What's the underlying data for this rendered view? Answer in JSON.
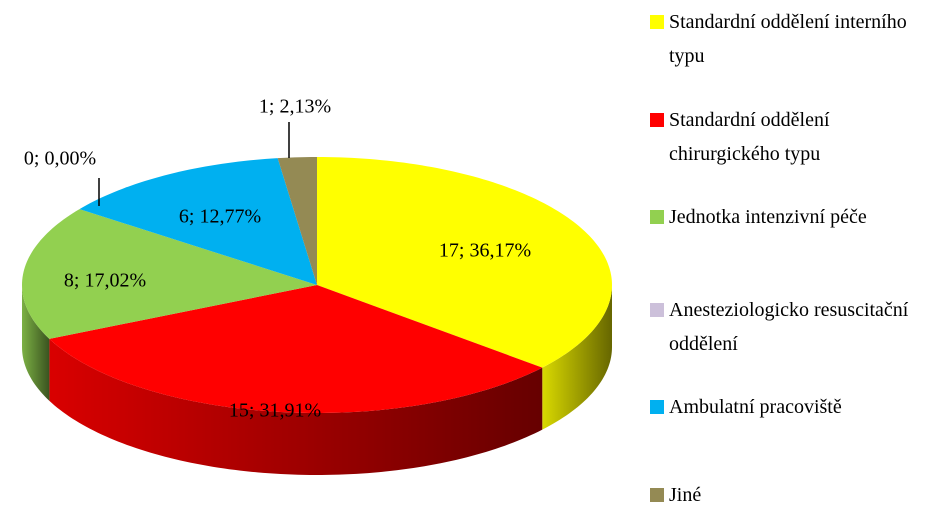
{
  "chart_data": {
    "type": "pie",
    "categories": [
      "Standardní oddělení interního typu",
      "Standardní oddělení chirurgického typu",
      "Jednotka intenzivní péče",
      "Anesteziologicko resuscitační oddělení",
      "Ambulatní pracoviště",
      "Jiné"
    ],
    "values": [
      17,
      15,
      8,
      0,
      6,
      1
    ],
    "value_labels": [
      "17; 36,17%",
      "15; 31,91%",
      "8; 17,02%",
      "0; 0,00%",
      "6; 12,77%",
      "1; 2,13%"
    ],
    "colors": [
      "#ffff00",
      "#ff0000",
      "#92d050",
      "#ccc0da",
      "#00b0f0",
      "#948a54"
    ],
    "legend": "right"
  }
}
